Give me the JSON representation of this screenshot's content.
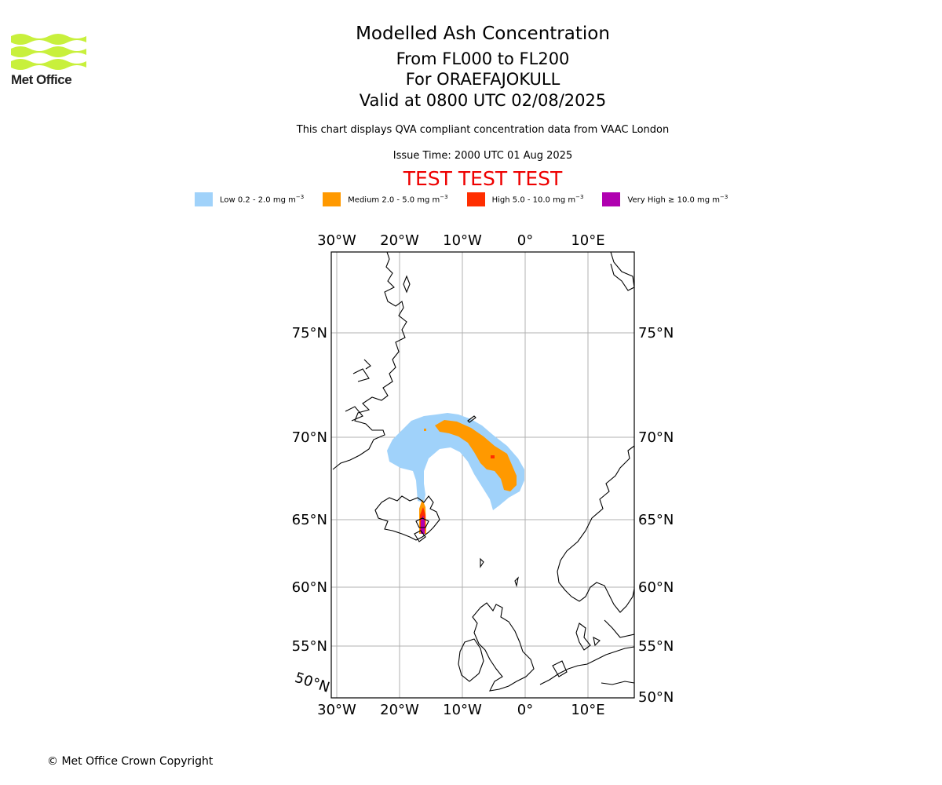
{
  "organisation": {
    "name": "Met Office"
  },
  "titles": {
    "main": "Modelled Ash Concentration",
    "levels": "From FL000 to FL200",
    "volcano": "For ORAEFAJOKULL",
    "valid": "Valid at 0800 UTC 02/08/2025"
  },
  "description": "This chart displays QVA compliant concentration data from VAAC London",
  "issue_time": "Issue Time: 2000 UTC 01 Aug 2025",
  "test_banner": "TEST TEST TEST",
  "legend": [
    {
      "label": "Low 0.2 - 2.0 mg m",
      "unit_exp": "−3",
      "color": "#a0d2fa"
    },
    {
      "label": "Medium 2.0 - 5.0 mg m",
      "unit_exp": "−3",
      "color": "#ff9900"
    },
    {
      "label": "High 5.0 - 10.0 mg m",
      "unit_exp": "−3",
      "color": "#ff2e00"
    },
    {
      "label": "Very High  ≥  10.0 mg m",
      "unit_exp": "−3",
      "color": "#b000b0"
    }
  ],
  "map": {
    "lon_ticks": [
      "30°W",
      "20°W",
      "10°W",
      "0°",
      "10°E"
    ],
    "lat_ticks_left": [
      "75°N",
      "70°N",
      "65°N",
      "60°N",
      "55°N",
      "50°N"
    ],
    "lat_ticks_right": [
      "75°N",
      "70°N",
      "65°N",
      "60°N",
      "55°N",
      "50°N"
    ],
    "grid": true,
    "coastline_color": "#000000"
  },
  "copyright": "© Met Office Crown Copyright"
}
